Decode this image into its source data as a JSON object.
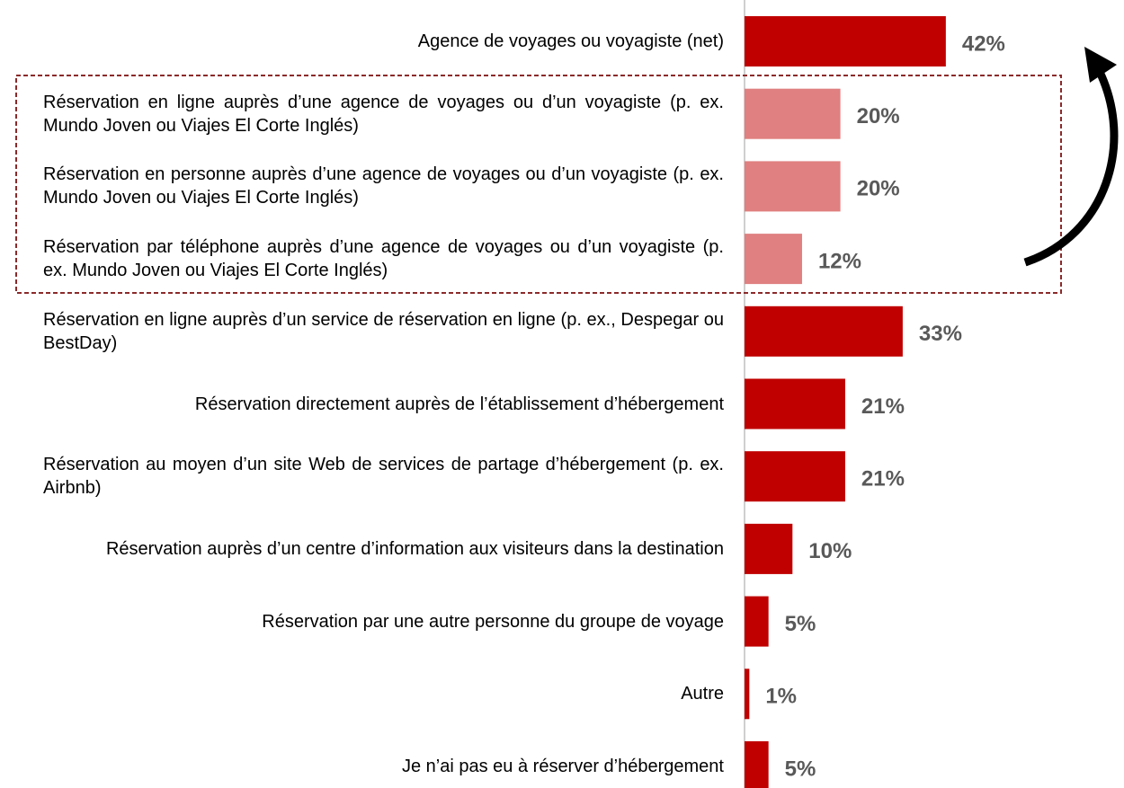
{
  "chart_data": {
    "type": "hbar",
    "categories": [
      "Agence de voyages ou voyagiste (net)",
      "Réservation en ligne auprès d’une agence de voyages ou d’un voyagiste (p. ex. Mundo Joven ou Viajes El Corte Inglés)",
      "Réservation en personne auprès d’une agence de voyages ou d’un voyagiste (p. ex. Mundo Joven ou Viajes El Corte Inglés)",
      "Réservation par téléphone auprès d’une agence de voyages ou d’un voyagiste (p. ex. Mundo Joven ou Viajes El Corte Inglés)",
      "Réservation en ligne auprès d’un service de réservation en ligne (p. ex., Despegar ou BestDay)",
      "Réservation directement auprès de l’établissement d’hébergement",
      "Réservation au moyen d’un site Web de services de partage d’hébergement (p. ex. Airbnb)",
      "Réservation auprès d’un centre d’information aux visiteurs dans la destination",
      "Réservation par une autre personne du groupe de voyage",
      "Autre",
      "Je n’ai pas eu à réserver d’hébergement"
    ],
    "values": [
      42,
      20,
      20,
      12,
      33,
      21,
      21,
      10,
      5,
      1,
      5
    ],
    "value_labels": [
      "42%",
      "20%",
      "20%",
      "12%",
      "33%",
      "21%",
      "21%",
      "10%",
      "5%",
      "1%",
      "5%"
    ],
    "colors": [
      "#c00000",
      "#e08080",
      "#e08080",
      "#e08080",
      "#c00000",
      "#c00000",
      "#c00000",
      "#c00000",
      "#c00000",
      "#c00000",
      "#c00000"
    ],
    "xlim": [
      0,
      100
    ]
  }
}
